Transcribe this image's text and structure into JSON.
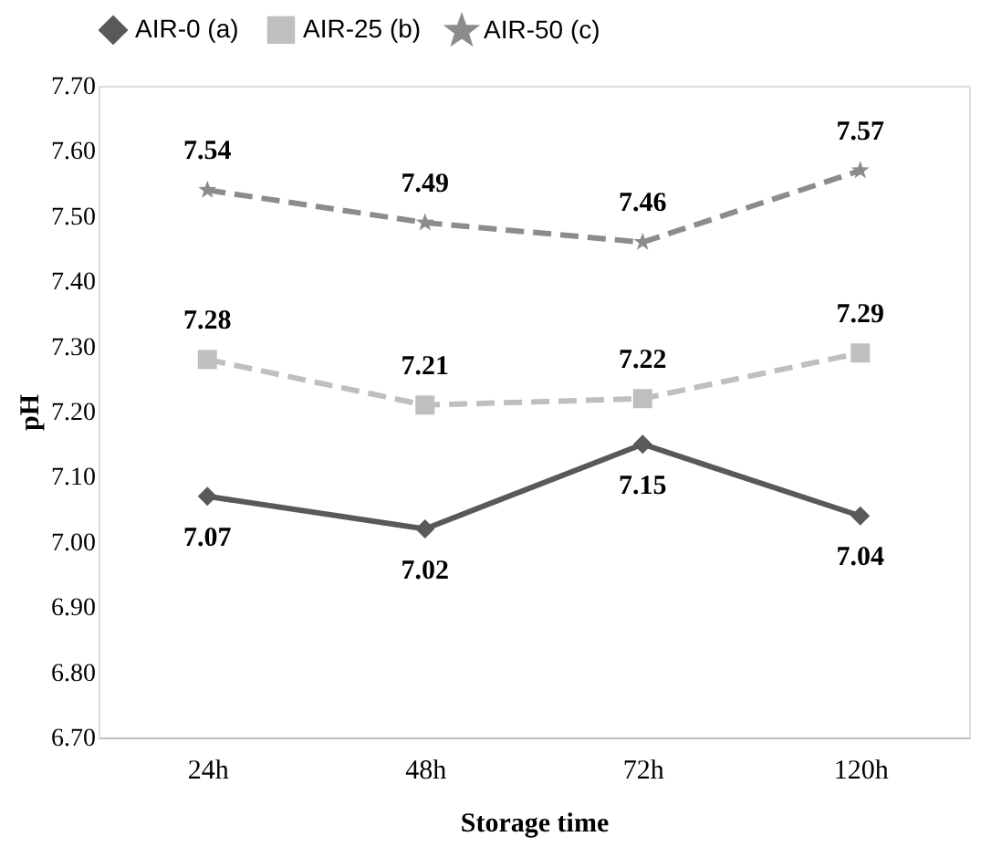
{
  "chart_data": {
    "type": "line",
    "xlabel": "Storage time",
    "ylabel": "pH",
    "categories": [
      "24h",
      "48h",
      "72h",
      "120h"
    ],
    "series": [
      {
        "name": "AIR-0 (a)",
        "color": "#595959",
        "values": [
          7.07,
          7.02,
          7.15,
          7.04
        ],
        "marker": "diamond",
        "line_style": "solid"
      },
      {
        "name": "AIR-25 (b)",
        "color": "#bfbfbf",
        "values": [
          7.28,
          7.21,
          7.22,
          7.29
        ],
        "marker": "square",
        "line_style": "dashed"
      },
      {
        "name": "AIR-50 (c)",
        "color": "#8c8c8c",
        "values": [
          7.54,
          7.49,
          7.46,
          7.57
        ],
        "marker": "star",
        "line_style": "dashed"
      }
    ],
    "ylim": [
      6.7,
      7.7
    ],
    "yticks": [
      {
        "value": 6.7,
        "label": "6.70"
      },
      {
        "value": 6.8,
        "label": "6.80"
      },
      {
        "value": 6.9,
        "label": "6.90"
      },
      {
        "value": 7.0,
        "label": "7.00"
      },
      {
        "value": 7.1,
        "label": "7.10"
      },
      {
        "value": 7.2,
        "label": "7.20"
      },
      {
        "value": 7.3,
        "label": "7.30"
      },
      {
        "value": 7.4,
        "label": "7.40"
      },
      {
        "value": 7.5,
        "label": "7.50"
      },
      {
        "value": 7.6,
        "label": "7.60"
      },
      {
        "value": 7.7,
        "label": "7.70"
      }
    ],
    "data_labels": true,
    "legend": "top",
    "grid": false
  }
}
